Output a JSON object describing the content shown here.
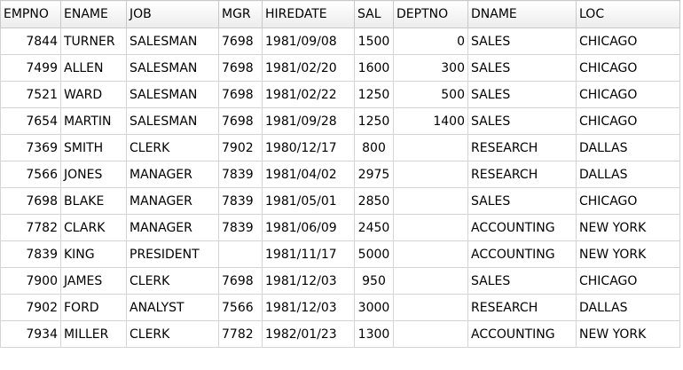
{
  "columns": [
    "EMPNO",
    "ENAME",
    "JOB",
    "MGR",
    "HIREDATE",
    "SAL",
    "DEPTNO",
    "DNAME",
    "LOC"
  ],
  "rows": [
    [
      "7844",
      "TURNER",
      "SALESMAN",
      "7698",
      "1981/09/08",
      "1500",
      "0",
      "SALES",
      "CHICAGO"
    ],
    [
      "7499",
      "ALLEN",
      "SALESMAN",
      "7698",
      "1981/02/20",
      "1600",
      "300",
      "SALES",
      "CHICAGO"
    ],
    [
      "7521",
      "WARD",
      "SALESMAN",
      "7698",
      "1981/02/22",
      "1250",
      "500",
      "SALES",
      "CHICAGO"
    ],
    [
      "7654",
      "MARTIN",
      "SALESMAN",
      "7698",
      "1981/09/28",
      "1250",
      "1400",
      "SALES",
      "CHICAGO"
    ],
    [
      "7369",
      "SMITH",
      "CLERK",
      "7902",
      "1980/12/17",
      "800",
      "",
      "RESEARCH",
      "DALLAS"
    ],
    [
      "7566",
      "JONES",
      "MANAGER",
      "7839",
      "1981/04/02",
      "2975",
      "",
      "RESEARCH",
      "DALLAS"
    ],
    [
      "7698",
      "BLAKE",
      "MANAGER",
      "7839",
      "1981/05/01",
      "2850",
      "",
      "SALES",
      "CHICAGO"
    ],
    [
      "7782",
      "CLARK",
      "MANAGER",
      "7839",
      "1981/06/09",
      "2450",
      "",
      "ACCOUNTING",
      "NEW YORK"
    ],
    [
      "7839",
      "KING",
      "PRESIDENT",
      "",
      "1981/11/17",
      "5000",
      "",
      "ACCOUNTING",
      "NEW YORK"
    ],
    [
      "7900",
      "JAMES",
      "CLERK",
      "7698",
      "1981/12/03",
      "950",
      "",
      "SALES",
      "CHICAGO"
    ],
    [
      "7902",
      "FORD",
      "ANALYST",
      "7566",
      "1981/12/03",
      "3000",
      "",
      "RESEARCH",
      "DALLAS"
    ],
    [
      "7934",
      "MILLER",
      "CLERK",
      "7782",
      "1982/01/23",
      "1300",
      "",
      "ACCOUNTING",
      "NEW YORK"
    ]
  ]
}
